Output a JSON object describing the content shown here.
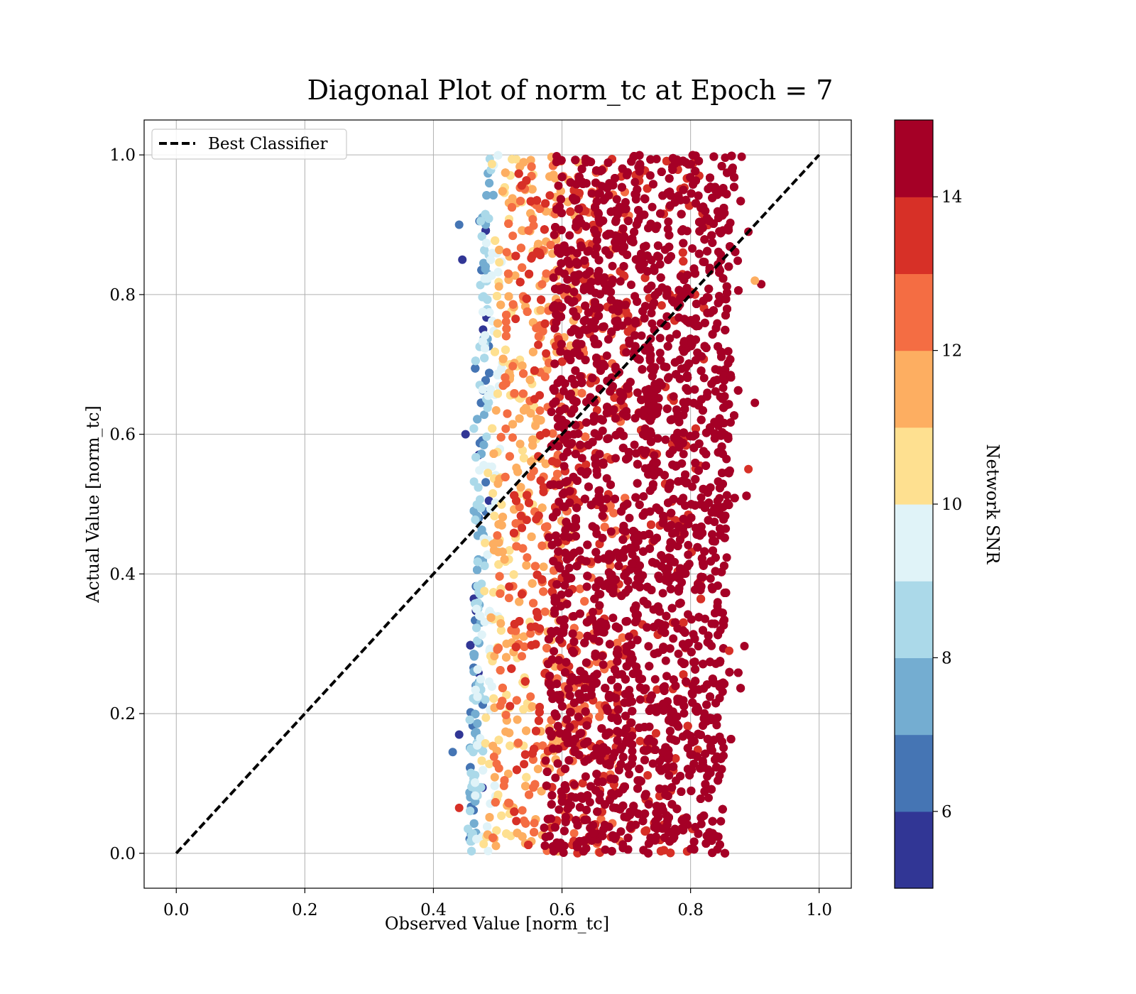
{
  "chart_data": {
    "type": "scatter",
    "title": "Diagonal Plot of norm_tc at Epoch = 7",
    "xlabel": "Observed Value [norm_tc]",
    "ylabel": "Actual Value [norm_tc]",
    "xlim": [
      -0.05,
      1.05
    ],
    "ylim": [
      -0.05,
      1.05
    ],
    "xticks": [
      "0.0",
      "0.2",
      "0.4",
      "0.6",
      "0.8",
      "1.0"
    ],
    "yticks": [
      "0.0",
      "0.2",
      "0.4",
      "0.6",
      "0.8",
      "1.0"
    ],
    "grid": true,
    "legend": {
      "placement": "upper-left",
      "entries": [
        "Best Classifier"
      ]
    },
    "reference_line": {
      "name": "Best Classifier",
      "style": "dashed",
      "color": "#000000",
      "x": [
        0.0,
        1.0
      ],
      "y": [
        0.0,
        1.0
      ]
    },
    "colorbar": {
      "label": "Network SNR",
      "range": [
        5,
        15
      ],
      "ticks": [
        "6",
        "8",
        "10",
        "12",
        "14"
      ],
      "colors": [
        "#313695",
        "#4575b4",
        "#74add1",
        "#abd9e9",
        "#e0f3f8",
        "#fee090",
        "#fdae61",
        "#f46d43",
        "#d73027",
        "#a50026"
      ]
    },
    "scatter_summary": {
      "observed_range": [
        0.43,
        0.91
      ],
      "actual_range": [
        0.0,
        1.0
      ],
      "trend": "low SNR points cluster near observed 0.45-0.5; high SNR points span 0.6-0.88",
      "representative_points": [
        {
          "x": 0.44,
          "y": 0.9,
          "snr": 6.5
        },
        {
          "x": 0.445,
          "y": 0.85,
          "snr": 5.5
        },
        {
          "x": 0.45,
          "y": 0.6,
          "snr": 5.3
        },
        {
          "x": 0.44,
          "y": 0.17,
          "snr": 5.5
        },
        {
          "x": 0.43,
          "y": 0.145,
          "snr": 6.2
        },
        {
          "x": 0.44,
          "y": 0.065,
          "snr": 13.5
        },
        {
          "x": 0.91,
          "y": 0.815,
          "snr": 14.8
        },
        {
          "x": 0.9,
          "y": 0.82,
          "snr": 11.5
        },
        {
          "x": 0.89,
          "y": 0.89,
          "snr": 14.8
        },
        {
          "x": 0.9,
          "y": 0.645,
          "snr": 14.8
        },
        {
          "x": 0.89,
          "y": 0.55,
          "snr": 13.5
        },
        {
          "x": 0.86,
          "y": 0.29,
          "snr": 13.0
        }
      ]
    }
  }
}
